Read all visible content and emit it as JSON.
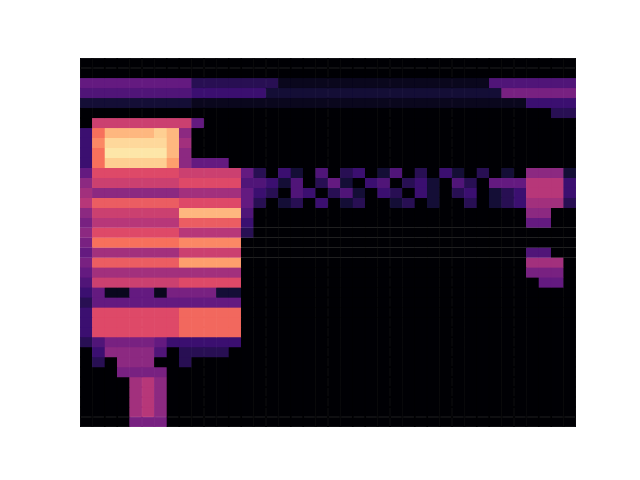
{
  "chart_data": {
    "type": "heatmap",
    "tick_labels": false,
    "grid": false,
    "cells": [
      [
        0,
        0,
        0,
        0,
        0,
        0,
        0,
        0,
        0,
        0,
        0,
        0,
        0,
        0,
        0,
        0,
        0,
        0,
        0,
        0,
        0,
        0,
        0,
        0,
        0,
        0,
        0,
        0,
        0,
        0,
        0,
        0,
        0,
        0,
        0,
        0,
        0,
        0,
        0,
        0
      ],
      [
        0,
        0,
        0,
        0,
        0,
        0,
        0,
        0,
        0,
        0,
        0,
        0,
        0,
        0,
        0,
        0,
        0,
        0,
        0,
        0,
        0,
        0,
        0,
        0,
        0,
        0,
        0,
        0,
        0,
        0,
        0,
        0,
        0,
        0,
        0,
        0,
        0,
        0,
        0,
        0
      ],
      [
        0.3,
        0.3,
        0.3,
        0.3,
        0.3,
        0.3,
        0.3,
        0.3,
        0.3,
        0.15,
        0.15,
        0.15,
        0.15,
        0.15,
        0.15,
        0.15,
        0.05,
        0.05,
        0.05,
        0.05,
        0.05,
        0.05,
        0.05,
        0.05,
        0.05,
        0.05,
        0.05,
        0.05,
        0.05,
        0.05,
        0.05,
        0.05,
        0.05,
        0.25,
        0.25,
        0.25,
        0.25,
        0.25,
        0.25,
        0.25
      ],
      [
        0.25,
        0.25,
        0.25,
        0.25,
        0.25,
        0.25,
        0.25,
        0.25,
        0.25,
        0.2,
        0.2,
        0.2,
        0.2,
        0.2,
        0.2,
        0.1,
        0.1,
        0.1,
        0.1,
        0.1,
        0.1,
        0.1,
        0.1,
        0.1,
        0.1,
        0.1,
        0.1,
        0.1,
        0.1,
        0.1,
        0.1,
        0.1,
        0.1,
        0.1,
        0.35,
        0.35,
        0.35,
        0.35,
        0.35,
        0.35
      ],
      [
        0.1,
        0.1,
        0.1,
        0.1,
        0.1,
        0.1,
        0.1,
        0.1,
        0.1,
        0.05,
        0.05,
        0.05,
        0.05,
        0.05,
        0.05,
        0.05,
        0.05,
        0.05,
        0.05,
        0.05,
        0.05,
        0.05,
        0.05,
        0.05,
        0.05,
        0.05,
        0.05,
        0.05,
        0.05,
        0.05,
        0.05,
        0.05,
        0.05,
        0.05,
        0.05,
        0.05,
        0.2,
        0.2,
        0.2,
        0.2
      ],
      [
        0,
        0,
        0,
        0,
        0,
        0,
        0,
        0,
        0,
        0,
        0,
        0,
        0,
        0,
        0,
        0,
        0,
        0,
        0,
        0,
        0,
        0,
        0,
        0,
        0,
        0,
        0,
        0,
        0,
        0,
        0,
        0,
        0,
        0,
        0,
        0,
        0,
        0,
        0.15,
        0.15
      ],
      [
        0,
        0.55,
        0.55,
        0.55,
        0.55,
        0.55,
        0.55,
        0.55,
        0.55,
        0.3,
        0,
        0,
        0,
        0,
        0,
        0,
        0,
        0,
        0,
        0,
        0,
        0,
        0,
        0,
        0,
        0,
        0,
        0,
        0,
        0,
        0,
        0,
        0,
        0,
        0,
        0,
        0,
        0,
        0,
        0
      ],
      [
        0.2,
        0.7,
        0.85,
        0.85,
        0.85,
        0.85,
        0.9,
        0.85,
        0.4,
        0,
        0,
        0,
        0,
        0,
        0,
        0,
        0,
        0,
        0,
        0,
        0,
        0,
        0,
        0,
        0,
        0,
        0,
        0,
        0,
        0,
        0,
        0,
        0,
        0,
        0,
        0,
        0,
        0,
        0,
        0
      ],
      [
        0.2,
        0.75,
        0.92,
        0.92,
        0.92,
        0.92,
        0.92,
        0.85,
        0.45,
        0,
        0,
        0,
        0,
        0,
        0,
        0,
        0,
        0,
        0,
        0,
        0,
        0,
        0,
        0,
        0,
        0,
        0,
        0,
        0,
        0,
        0,
        0,
        0,
        0,
        0,
        0,
        0,
        0,
        0,
        0
      ],
      [
        0.2,
        0.7,
        0.95,
        0.95,
        0.95,
        0.95,
        0.95,
        0.85,
        0.4,
        0,
        0,
        0,
        0,
        0,
        0,
        0,
        0,
        0,
        0,
        0,
        0,
        0,
        0,
        0,
        0,
        0,
        0,
        0,
        0,
        0,
        0,
        0,
        0,
        0,
        0,
        0,
        0,
        0,
        0,
        0
      ],
      [
        0.2,
        0.7,
        0.9,
        0.9,
        0.9,
        0.9,
        0.9,
        0.8,
        0.4,
        0.3,
        0.3,
        0.3,
        0,
        0,
        0,
        0,
        0,
        0,
        0,
        0,
        0,
        0,
        0,
        0,
        0,
        0,
        0,
        0,
        0,
        0,
        0,
        0,
        0,
        0,
        0,
        0,
        0,
        0,
        0,
        0
      ],
      [
        0.3,
        0.6,
        0.6,
        0.6,
        0.6,
        0.6,
        0.6,
        0.6,
        0.55,
        0.55,
        0.55,
        0.55,
        0.55,
        0.3,
        0.15,
        0,
        0.2,
        0.1,
        0,
        0.25,
        0,
        0.15,
        0.2,
        0,
        0.1,
        0.25,
        0,
        0.15,
        0,
        0.2,
        0.1,
        0,
        0.15,
        0,
        0.1,
        0,
        0.4,
        0.4,
        0.4,
        0.1
      ],
      [
        0.4,
        0.55,
        0.55,
        0.55,
        0.55,
        0.55,
        0.55,
        0.55,
        0.6,
        0.6,
        0.6,
        0.6,
        0.6,
        0.25,
        0.25,
        0.2,
        0.1,
        0.25,
        0,
        0.15,
        0.3,
        0.1,
        0,
        0.2,
        0.25,
        0,
        0.15,
        0.2,
        0.1,
        0,
        0.25,
        0.15,
        0,
        0.3,
        0.3,
        0.3,
        0.5,
        0.5,
        0.5,
        0.2
      ],
      [
        0.45,
        0.4,
        0.4,
        0.4,
        0.4,
        0.4,
        0.4,
        0.4,
        0.45,
        0.45,
        0.45,
        0.45,
        0.45,
        0.3,
        0.2,
        0.15,
        0,
        0.25,
        0.2,
        0,
        0.15,
        0.25,
        0.1,
        0,
        0.2,
        0.15,
        0,
        0.2,
        0.1,
        0,
        0.15,
        0.2,
        0,
        0.1,
        0.15,
        0.2,
        0.5,
        0.5,
        0.5,
        0.2
      ],
      [
        0.5,
        0.65,
        0.65,
        0.65,
        0.65,
        0.65,
        0.65,
        0.65,
        0.6,
        0.6,
        0.6,
        0.6,
        0.6,
        0.3,
        0.15,
        0,
        0.1,
        0.15,
        0,
        0.2,
        0,
        0.1,
        0.15,
        0,
        0,
        0.1,
        0.15,
        0,
        0.1,
        0,
        0,
        0.15,
        0,
        0.1,
        0.15,
        0.2,
        0.45,
        0.45,
        0.45,
        0.15
      ],
      [
        0.4,
        0.55,
        0.55,
        0.55,
        0.55,
        0.55,
        0.55,
        0.55,
        0.85,
        0.85,
        0.85,
        0.85,
        0.85,
        0.25,
        0,
        0,
        0,
        0,
        0,
        0,
        0,
        0,
        0,
        0,
        0,
        0,
        0,
        0,
        0,
        0,
        0,
        0,
        0,
        0,
        0,
        0,
        0.4,
        0.4,
        0,
        0
      ],
      [
        0.35,
        0.5,
        0.5,
        0.5,
        0.5,
        0.5,
        0.5,
        0.5,
        0.65,
        0.65,
        0.65,
        0.65,
        0.65,
        0.2,
        0,
        0,
        0,
        0,
        0,
        0,
        0,
        0,
        0,
        0,
        0,
        0,
        0,
        0,
        0,
        0,
        0,
        0,
        0,
        0,
        0,
        0,
        0.3,
        0.3,
        0,
        0
      ],
      [
        0.4,
        0.6,
        0.6,
        0.6,
        0.6,
        0.6,
        0.6,
        0.6,
        0.5,
        0.5,
        0.5,
        0.5,
        0.5,
        0.15,
        0,
        0,
        0,
        0,
        0,
        0,
        0,
        0,
        0,
        0,
        0,
        0,
        0,
        0,
        0,
        0,
        0,
        0,
        0,
        0,
        0,
        0,
        0,
        0,
        0,
        0
      ],
      [
        0.35,
        0.7,
        0.7,
        0.7,
        0.7,
        0.7,
        0.7,
        0.7,
        0.75,
        0.75,
        0.75,
        0.75,
        0.75,
        0,
        0,
        0,
        0,
        0,
        0,
        0,
        0,
        0,
        0,
        0,
        0,
        0,
        0,
        0,
        0,
        0,
        0,
        0,
        0,
        0,
        0,
        0,
        0,
        0,
        0,
        0
      ],
      [
        0.3,
        0.45,
        0.45,
        0.45,
        0.45,
        0.45,
        0.45,
        0.45,
        0.55,
        0.55,
        0.55,
        0.55,
        0.55,
        0,
        0,
        0,
        0,
        0,
        0,
        0,
        0,
        0,
        0,
        0,
        0,
        0,
        0,
        0,
        0,
        0,
        0,
        0,
        0,
        0,
        0,
        0,
        0.25,
        0.25,
        0,
        0
      ],
      [
        0.35,
        0.65,
        0.65,
        0.65,
        0.65,
        0.65,
        0.65,
        0.65,
        0.8,
        0.8,
        0.8,
        0.8,
        0.8,
        0,
        0,
        0,
        0,
        0,
        0,
        0,
        0,
        0,
        0,
        0,
        0,
        0,
        0,
        0,
        0,
        0,
        0,
        0,
        0,
        0,
        0,
        0,
        0.45,
        0.45,
        0.45,
        0
      ],
      [
        0.3,
        0.45,
        0.45,
        0.45,
        0.45,
        0.45,
        0.45,
        0.45,
        0.45,
        0.45,
        0.45,
        0.45,
        0.45,
        0,
        0,
        0,
        0,
        0,
        0,
        0,
        0,
        0,
        0,
        0,
        0,
        0,
        0,
        0,
        0,
        0,
        0,
        0,
        0,
        0,
        0,
        0,
        0.35,
        0.35,
        0.35,
        0
      ],
      [
        0.25,
        0.55,
        0.55,
        0.55,
        0.55,
        0.55,
        0.55,
        0.55,
        0.6,
        0.6,
        0.6,
        0.6,
        0.6,
        0,
        0,
        0,
        0,
        0,
        0,
        0,
        0,
        0,
        0,
        0,
        0,
        0,
        0,
        0,
        0,
        0,
        0,
        0,
        0,
        0,
        0,
        0,
        0,
        0.3,
        0.3,
        0
      ],
      [
        0.2,
        0.3,
        0.05,
        0.05,
        0.3,
        0.3,
        0.05,
        0.35,
        0.35,
        0.35,
        0.35,
        0.1,
        0.1,
        0,
        0,
        0,
        0,
        0,
        0,
        0,
        0,
        0,
        0,
        0,
        0,
        0,
        0,
        0,
        0,
        0,
        0,
        0,
        0,
        0,
        0,
        0,
        0,
        0,
        0,
        0
      ],
      [
        0.15,
        0.3,
        0.3,
        0.3,
        0.3,
        0.3,
        0.3,
        0.3,
        0.3,
        0.3,
        0.3,
        0.3,
        0.3,
        0,
        0,
        0,
        0,
        0,
        0,
        0,
        0,
        0,
        0,
        0,
        0,
        0,
        0,
        0,
        0,
        0,
        0,
        0,
        0,
        0,
        0,
        0,
        0,
        0,
        0,
        0
      ],
      [
        0.2,
        0.6,
        0.6,
        0.6,
        0.6,
        0.6,
        0.6,
        0.6,
        0.68,
        0.68,
        0.68,
        0.68,
        0.68,
        0,
        0,
        0,
        0,
        0,
        0,
        0,
        0,
        0,
        0,
        0,
        0,
        0,
        0,
        0,
        0,
        0,
        0,
        0,
        0,
        0,
        0,
        0,
        0,
        0,
        0,
        0
      ],
      [
        0.2,
        0.6,
        0.6,
        0.6,
        0.6,
        0.6,
        0.6,
        0.6,
        0.68,
        0.68,
        0.68,
        0.68,
        0.68,
        0,
        0,
        0,
        0,
        0,
        0,
        0,
        0,
        0,
        0,
        0,
        0,
        0,
        0,
        0,
        0,
        0,
        0,
        0,
        0,
        0,
        0,
        0,
        0,
        0,
        0,
        0
      ],
      [
        0.2,
        0.6,
        0.6,
        0.6,
        0.6,
        0.6,
        0.6,
        0.6,
        0.68,
        0.68,
        0.68,
        0.68,
        0.68,
        0,
        0,
        0,
        0,
        0,
        0,
        0,
        0,
        0,
        0,
        0,
        0,
        0,
        0,
        0,
        0,
        0,
        0,
        0,
        0,
        0,
        0,
        0,
        0,
        0,
        0,
        0
      ],
      [
        0.15,
        0.25,
        0.35,
        0.35,
        0.35,
        0.35,
        0.3,
        0.2,
        0.2,
        0.2,
        0.2,
        0.2,
        0.2,
        0,
        0,
        0,
        0,
        0,
        0,
        0,
        0,
        0,
        0,
        0,
        0,
        0,
        0,
        0,
        0,
        0,
        0,
        0,
        0,
        0,
        0,
        0,
        0,
        0,
        0,
        0
      ],
      [
        0,
        0.2,
        0.4,
        0.4,
        0.4,
        0.4,
        0.25,
        0,
        0.15,
        0.15,
        0.15,
        0.15,
        0,
        0,
        0,
        0,
        0,
        0,
        0,
        0,
        0,
        0,
        0,
        0,
        0,
        0,
        0,
        0,
        0,
        0,
        0,
        0,
        0,
        0,
        0,
        0,
        0,
        0,
        0,
        0
      ],
      [
        0,
        0.15,
        0,
        0.4,
        0.4,
        0.4,
        0,
        0,
        0.15,
        0,
        0,
        0,
        0,
        0,
        0,
        0,
        0,
        0,
        0,
        0,
        0,
        0,
        0,
        0,
        0,
        0,
        0,
        0,
        0,
        0,
        0,
        0,
        0,
        0,
        0,
        0,
        0,
        0,
        0,
        0
      ],
      [
        0,
        0,
        0,
        0.35,
        0.35,
        0.35,
        0.35,
        0,
        0,
        0,
        0,
        0,
        0,
        0,
        0,
        0,
        0,
        0,
        0,
        0,
        0,
        0,
        0,
        0,
        0,
        0,
        0,
        0,
        0,
        0,
        0,
        0,
        0,
        0,
        0,
        0,
        0,
        0,
        0,
        0
      ],
      [
        0,
        0,
        0,
        0,
        0.45,
        0.5,
        0.4,
        0,
        0,
        0,
        0,
        0,
        0,
        0,
        0,
        0,
        0,
        0,
        0,
        0,
        0,
        0,
        0,
        0,
        0,
        0,
        0,
        0,
        0,
        0,
        0,
        0,
        0,
        0,
        0,
        0,
        0,
        0,
        0,
        0
      ],
      [
        0,
        0,
        0,
        0,
        0.45,
        0.5,
        0.4,
        0,
        0,
        0,
        0,
        0,
        0,
        0,
        0,
        0,
        0,
        0,
        0,
        0,
        0,
        0,
        0,
        0,
        0,
        0,
        0,
        0,
        0,
        0,
        0,
        0,
        0,
        0,
        0,
        0,
        0,
        0,
        0,
        0
      ],
      [
        0,
        0,
        0,
        0,
        0.45,
        0.5,
        0.4,
        0,
        0,
        0,
        0,
        0,
        0,
        0,
        0,
        0,
        0,
        0,
        0,
        0,
        0,
        0,
        0,
        0,
        0,
        0,
        0,
        0,
        0,
        0,
        0,
        0,
        0,
        0,
        0,
        0,
        0,
        0,
        0,
        0
      ],
      [
        0,
        0,
        0,
        0,
        0.45,
        0.5,
        0.4,
        0,
        0,
        0,
        0,
        0,
        0,
        0,
        0,
        0,
        0,
        0,
        0,
        0,
        0,
        0,
        0,
        0,
        0,
        0,
        0,
        0,
        0,
        0,
        0,
        0,
        0,
        0,
        0,
        0,
        0,
        0,
        0,
        0
      ],
      [
        0,
        0,
        0,
        0,
        0.35,
        0.35,
        0.35,
        0,
        0,
        0,
        0,
        0,
        0,
        0,
        0,
        0,
        0,
        0,
        0,
        0,
        0,
        0,
        0,
        0,
        0,
        0,
        0,
        0,
        0,
        0,
        0,
        0,
        0,
        0,
        0,
        0,
        0,
        0,
        0,
        0
      ]
    ]
  }
}
